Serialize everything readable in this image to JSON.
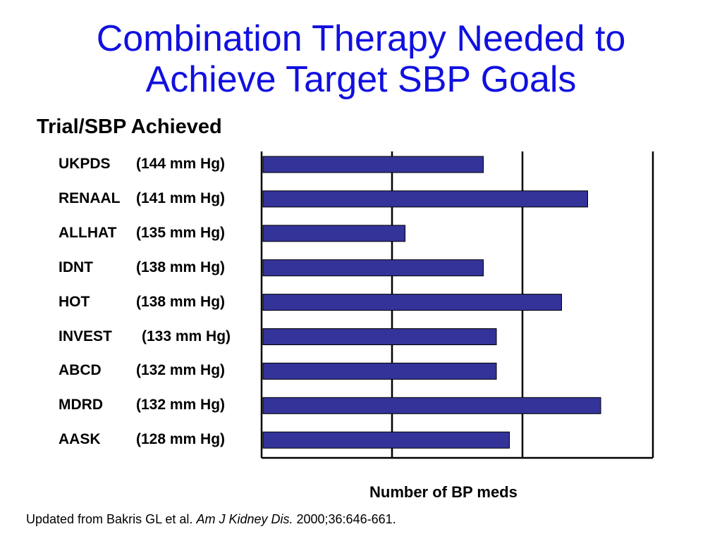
{
  "title_line1": "Combination Therapy Needed to",
  "title_line2": "Achieve Target SBP Goals",
  "section_label": "Trial/SBP Achieved",
  "x_axis_label": "Number of BP meds",
  "citation": {
    "prefix": "Updated from Bakris GL et al. ",
    "journal": "Am J Kidney Dis.",
    "suffix": " 2000;36:646-661."
  },
  "colors": {
    "title": "#1010e0",
    "bar": "#333399",
    "bar_border": "#000000"
  },
  "chart_data": {
    "type": "bar",
    "orientation": "horizontal",
    "categories": [
      "UKPDS",
      "RENAAL",
      "ALLHAT",
      "IDNT",
      "HOT",
      "INVEST",
      "ABCD",
      "MDRD",
      "AASK"
    ],
    "sbp_labels": [
      "(144 mm Hg)",
      "(141 mm Hg)",
      "(135 mm Hg)",
      "(138 mm Hg)",
      "(138 mm Hg)",
      "(133 mm Hg)",
      "(132 mm Hg)",
      "(132 mm Hg)",
      "(128 mm Hg)"
    ],
    "values": [
      1.7,
      2.5,
      1.1,
      1.7,
      2.3,
      1.8,
      1.8,
      2.6,
      1.9
    ],
    "xlabel": "Number of BP meds",
    "xlim": [
      0,
      3
    ],
    "gridlines": [
      1,
      2,
      3
    ],
    "tick_labels_shown": false
  }
}
